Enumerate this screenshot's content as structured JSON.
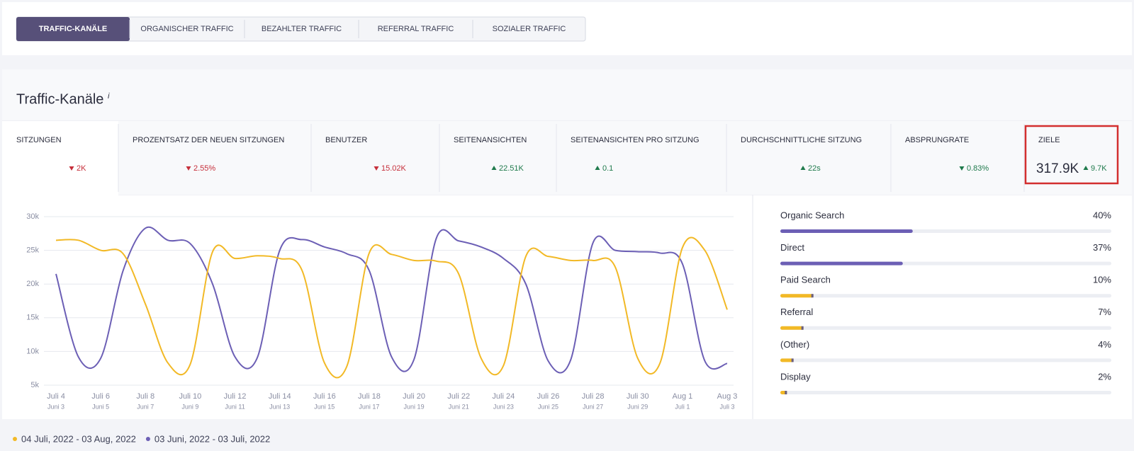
{
  "tabs": {
    "items": [
      "TRAFFIC-KANÄLE",
      "ORGANISCHER TRAFFIC",
      "BEZAHLTER TRAFFIC",
      "REFERRAL TRAFFIC",
      "SOZIALER TRAFFIC"
    ],
    "active": 0
  },
  "section": {
    "title": "Traffic-Kanäle",
    "info": "i"
  },
  "metrics": [
    {
      "label": "SITZUNGEN",
      "change": "2K",
      "trend": "down",
      "color": "#c62f3b"
    },
    {
      "label": "PROZENTSATZ DER NEUEN SITZUNGEN",
      "change": "2.55%",
      "trend": "down",
      "color": "#c62f3b"
    },
    {
      "label": "BENUTZER",
      "change": "15.02K",
      "trend": "down",
      "color": "#c62f3b"
    },
    {
      "label": "SEITENANSICHTEN",
      "change": "22.51K",
      "trend": "up",
      "color": "#1f7a4c"
    },
    {
      "label": "SEITENANSICHTEN PRO SITZUNG",
      "change": "0.1",
      "trend": "up",
      "color": "#1f7a4c"
    },
    {
      "label": "DURCHSCHNITTLICHE SITZUNG",
      "change": "22s",
      "trend": "up",
      "color": "#1f7a4c"
    },
    {
      "label": "ABSPRUNGRATE",
      "change": "0.83%",
      "trend": "down",
      "color": "#1f7a4c"
    },
    {
      "label": "ZIELE",
      "value": "317.9K",
      "change": "9.7K",
      "trend": "up",
      "color": "#1f7a4c"
    }
  ],
  "chart_data": {
    "type": "line",
    "categories": [
      "Juli 4",
      null,
      "Juli 6",
      null,
      "Juli 8",
      null,
      "Juli 10",
      null,
      "Juli 12",
      null,
      "Juli 14",
      null,
      "Juli 16",
      null,
      "Juli 18",
      null,
      "Juli 20",
      null,
      "Juli 22",
      null,
      "Juli 24",
      null,
      "Juli 26",
      null,
      "Juli 28",
      null,
      "Juli 30",
      null,
      "Aug 1",
      null,
      "Aug 3"
    ],
    "sublabels": [
      "Juni 3",
      null,
      "Juni 5",
      null,
      "Juni 7",
      null,
      "Juni 9",
      null,
      "Juni 11",
      null,
      "Juni 13",
      null,
      "Juni 15",
      null,
      "Juni 17",
      null,
      "Juni 19",
      null,
      "Juni 21",
      null,
      "Juni 23",
      null,
      "Juni 25",
      null,
      "Juni 27",
      null,
      "Juni 29",
      null,
      "Juli 1",
      null,
      "Juli 3"
    ],
    "series": [
      {
        "name": "04 Juli, 2022 - 03 Aug, 2022",
        "color": "#f2b926",
        "values": [
          26500,
          26500,
          25000,
          24500,
          17000,
          8300,
          8100,
          24800,
          23800,
          24200,
          23800,
          22000,
          8300,
          7800,
          24600,
          24400,
          23500,
          23400,
          21500,
          9000,
          7900,
          24100,
          24100,
          23500,
          23500,
          22500,
          9000,
          8300,
          25400,
          25000,
          16200
        ]
      },
      {
        "name": "03 Juni, 2022 - 03 Juli, 2022",
        "color": "#6c5fb5",
        "values": [
          21500,
          9200,
          9000,
          22000,
          28300,
          26500,
          26000,
          20000,
          9200,
          9100,
          25000,
          26600,
          25500,
          24500,
          22000,
          9200,
          8800,
          26800,
          26400,
          25500,
          23800,
          20000,
          8600,
          8700,
          26100,
          25000,
          24800,
          24600,
          23000,
          8600,
          8200
        ]
      }
    ],
    "ylim": [
      5000,
      30000
    ],
    "yticks": [
      {
        "value": 5000,
        "label": "5k"
      },
      {
        "value": 10000,
        "label": "10k"
      },
      {
        "value": 15000,
        "label": "15k"
      },
      {
        "value": 20000,
        "label": "20k"
      },
      {
        "value": 25000,
        "label": "25k"
      },
      {
        "value": 30000,
        "label": "30k"
      }
    ],
    "grid": true
  },
  "channels": {
    "items": [
      {
        "name": "Organic Search",
        "value": 40,
        "value_label": "40%",
        "color": "#6c5fb5"
      },
      {
        "name": "Direct",
        "value": 37,
        "value_label": "37%",
        "color": "#6c5fb5"
      },
      {
        "name": "Paid Search",
        "value": 10,
        "value_label": "10%",
        "color": "#f2b926"
      },
      {
        "name": "Referral",
        "value": 7,
        "value_label": "7%",
        "color": "#f2b926"
      },
      {
        "name": "(Other)",
        "value": 4,
        "value_label": "4%",
        "color": "#f2b926"
      },
      {
        "name": "Display",
        "value": 2,
        "value_label": "2%",
        "color": "#f2b926"
      }
    ]
  }
}
